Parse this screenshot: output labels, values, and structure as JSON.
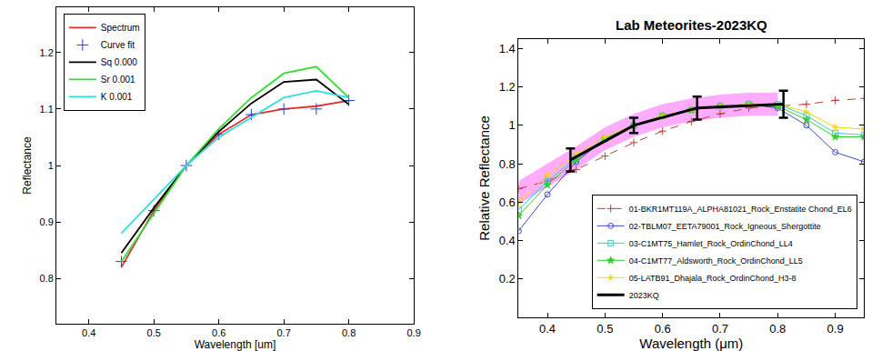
{
  "chart_data": [
    {
      "type": "line",
      "x_label": "Wavelength [um]",
      "y_label": "Reflectance",
      "xlim": [
        0.35,
        0.9
      ],
      "xticks": [
        0.4,
        0.5,
        0.6,
        0.7,
        0.8,
        0.9
      ],
      "ylim": [
        0.72,
        1.28
      ],
      "yticks": [
        0.8,
        0.9,
        1,
        1.1,
        1.2
      ],
      "grid": false,
      "legend": "upper left",
      "x": [
        0.45,
        0.5,
        0.55,
        0.6,
        0.65,
        0.7,
        0.75,
        0.8
      ],
      "series": [
        {
          "name": "Spectrum",
          "color": "#e03030",
          "line_style": "solid",
          "values": [
            0.82,
            0.92,
            1.0,
            1.055,
            1.09,
            1.1,
            1.105,
            1.115
          ]
        },
        {
          "name": "Curve fit",
          "color": "#1f3fd0",
          "marker": "cross-thin-open",
          "line_style": "none",
          "values": [
            0.83,
            0.92,
            1.0,
            1.055,
            1.09,
            1.1,
            1.1,
            1.115
          ]
        },
        {
          "name": "Sq 0.000",
          "color": "#000000",
          "line_style": "solid",
          "values": [
            0.845,
            0.925,
            1.0,
            1.06,
            1.11,
            1.148,
            1.152,
            1.108
          ]
        },
        {
          "name": "Sr 0.001",
          "color": "#33dd33",
          "line_style": "solid",
          "values": [
            0.83,
            0.915,
            1.0,
            1.065,
            1.12,
            1.163,
            1.175,
            1.12
          ]
        },
        {
          "name": "K 0.001",
          "color": "#33dddd",
          "line_style": "solid",
          "values": [
            0.88,
            0.94,
            1.0,
            1.05,
            1.085,
            1.12,
            1.132,
            1.12
          ]
        }
      ]
    },
    {
      "type": "line",
      "title": "Lab Meteorites-2023KQ",
      "x_label": "Wavelength (μm)",
      "y_label": "Relative Reflectance",
      "xlim": [
        0.35,
        0.95
      ],
      "xticks": [
        0.4,
        0.5,
        0.6,
        0.7,
        0.8,
        0.9
      ],
      "ylim": [
        0,
        1.45
      ],
      "yticks": [
        0.2,
        0.4,
        0.6,
        0.8,
        1,
        1.2,
        1.4
      ],
      "grid": false,
      "legend": "lower right",
      "x": [
        0.35,
        0.4,
        0.45,
        0.5,
        0.55,
        0.6,
        0.65,
        0.7,
        0.75,
        0.8,
        0.85,
        0.9,
        0.95
      ],
      "band": {
        "color": "#ff66ff",
        "x": [
          0.35,
          0.4,
          0.45,
          0.5,
          0.55,
          0.6,
          0.65,
          0.7,
          0.75,
          0.8
        ],
        "lower": [
          0.59,
          0.68,
          0.77,
          0.87,
          0.94,
          0.99,
          1.02,
          1.04,
          1.05,
          1.05
        ],
        "upper": [
          0.71,
          0.8,
          0.89,
          0.99,
          1.06,
          1.11,
          1.14,
          1.16,
          1.17,
          1.17
        ]
      },
      "series": [
        {
          "name": "01-BKR1MT119A_ALPHA81021_Rock_Enstatite Chond_EL6",
          "color": "#b0413e",
          "marker": "cross-thin-open",
          "line_style": "dash",
          "values": [
            0.67,
            0.71,
            0.77,
            0.84,
            0.91,
            0.97,
            1.02,
            1.06,
            1.09,
            1.1,
            1.11,
            1.13,
            1.14
          ]
        },
        {
          "name": "02-TBLM07_EETA79001_Rock_Igneous_Shergottite",
          "color": "#3f48cc",
          "marker": "circle-open",
          "line_style": "solid",
          "values": [
            0.45,
            0.64,
            0.81,
            0.93,
            1.0,
            1.05,
            1.08,
            1.1,
            1.11,
            1.09,
            1.0,
            0.86,
            0.81
          ]
        },
        {
          "name": "03-C1MT75_Hamlet_Rock_OrdinChond_LL4",
          "color": "#33cccc",
          "marker": "square-open",
          "line_style": "solid",
          "values": [
            0.56,
            0.71,
            0.83,
            0.93,
            1.0,
            1.05,
            1.08,
            1.1,
            1.11,
            1.11,
            1.05,
            0.96,
            0.95
          ]
        },
        {
          "name": "04-C1MT77_Aldsworth_Rock_OrdinChond_LL5",
          "color": "#33cc33",
          "marker": "star",
          "line_style": "solid",
          "values": [
            0.53,
            0.69,
            0.82,
            0.93,
            1.0,
            1.05,
            1.08,
            1.1,
            1.11,
            1.1,
            1.03,
            0.94,
            0.94
          ]
        },
        {
          "name": "05-LATB91_Dhajala_Rock_OrdinChond_H3-8",
          "color": "#f5d800",
          "marker": "asterisk-open",
          "line_style": "solid",
          "values": [
            0.6,
            0.74,
            0.85,
            0.94,
            1.0,
            1.05,
            1.08,
            1.1,
            1.11,
            1.11,
            1.07,
            0.99,
            0.98
          ]
        },
        {
          "name": "2023KQ",
          "color": "#000000",
          "line_style": "solid",
          "x": [
            0.44,
            0.55,
            0.66,
            0.81
          ],
          "values": [
            0.82,
            1.0,
            1.09,
            1.11
          ],
          "errors": [
            0.06,
            0.04,
            0.06,
            0.07
          ]
        }
      ]
    }
  ]
}
